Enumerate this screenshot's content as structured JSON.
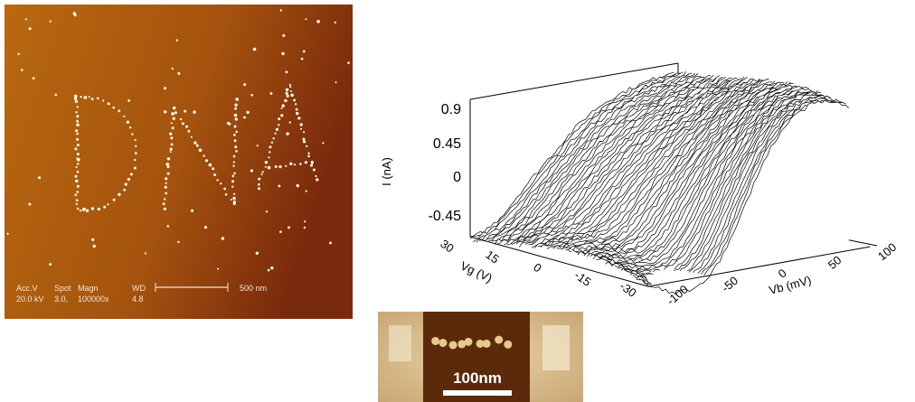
{
  "sem": {
    "acc_label": "Acc.V",
    "spot_label": "Spot",
    "magn_label": "Magn",
    "wd_label": "WD",
    "scale": "500 nm",
    "acc": "20.0 kV",
    "spot": "3.0,",
    "magn": "100000x",
    "wd": "4.8"
  },
  "plot": {
    "zlabel": "I (nA)",
    "zticks": [
      "0.9",
      "0.45",
      "0",
      "-0.45"
    ],
    "xlabel": "Vg (V)",
    "xticks": [
      "30",
      "15",
      "0",
      "-15",
      "-30"
    ],
    "ylabel": "Vb (mV)",
    "yticks": [
      "-100",
      "-50",
      "0",
      "50",
      "100"
    ]
  },
  "inset": {
    "scale": "100nm"
  }
}
